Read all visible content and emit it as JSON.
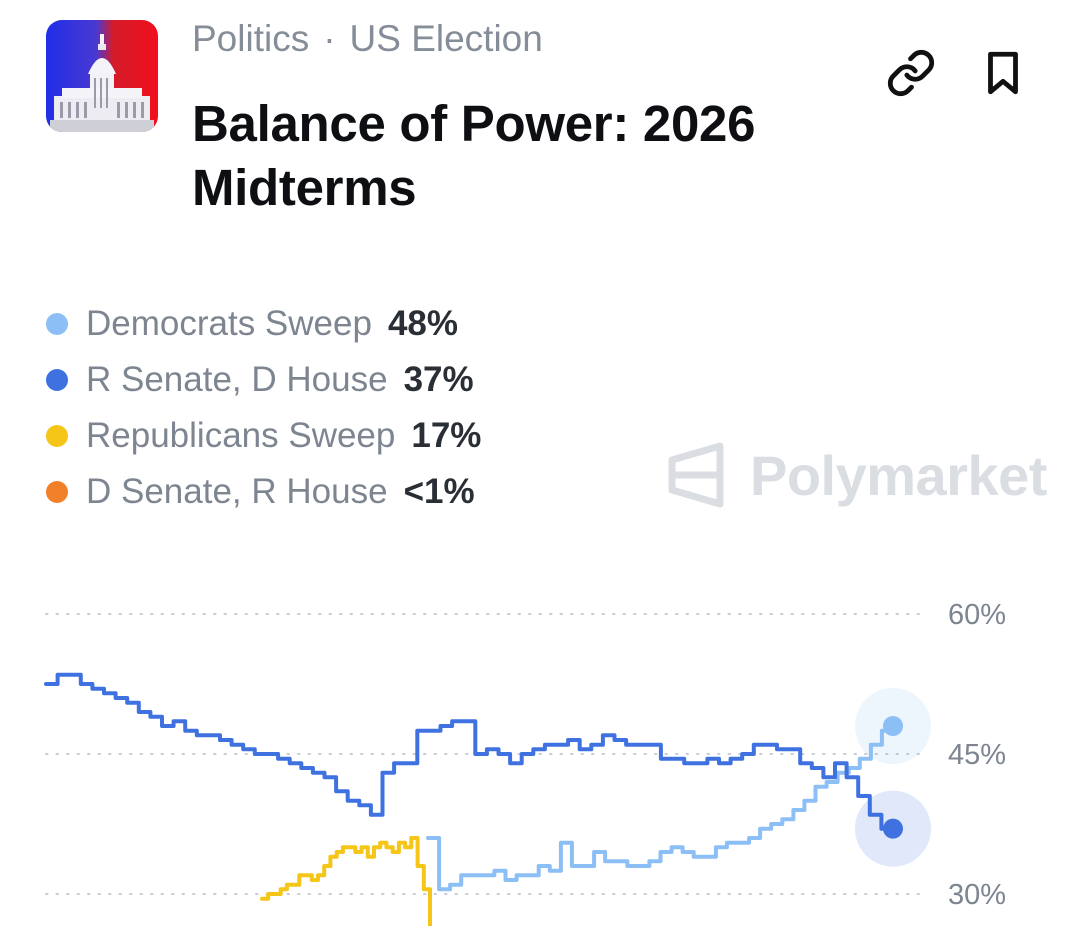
{
  "header": {
    "category": "Politics",
    "separator": "·",
    "subcategory": "US Election",
    "title": "Balance of Power: 2026 Midterms"
  },
  "icons": {
    "market_image": "capitol-building-icon",
    "share": "link-icon",
    "save": "bookmark-icon",
    "watermark": "polymarket-logo-icon"
  },
  "legend": [
    {
      "name": "Democrats Sweep",
      "value": "48%",
      "color": "#8cbff5"
    },
    {
      "name": "R Senate, D House",
      "value": "37%",
      "color": "#3f72e0"
    },
    {
      "name": "Republicans Sweep",
      "value": "17%",
      "color": "#f5c518"
    },
    {
      "name": "D Senate, R House",
      "value": "<1%",
      "color": "#f27f2a"
    }
  ],
  "watermark": {
    "text": "Polymarket"
  },
  "chart_data": {
    "type": "line",
    "yticks": [
      "60%",
      "45%",
      "30%"
    ],
    "ylim": [
      30,
      60
    ],
    "grid": true,
    "series": [
      {
        "name": "R Senate, D House",
        "color": "#3f72e0",
        "values": [
          52.5,
          53.5,
          53.5,
          52.5,
          52,
          51.5,
          51,
          50.5,
          49.5,
          49,
          48,
          48.5,
          47.5,
          47,
          47,
          46.5,
          46,
          45.5,
          45,
          45,
          44.5,
          44,
          43.5,
          43,
          42.5,
          41,
          40,
          39.5,
          38.5,
          43,
          44,
          44,
          47.5,
          47.5,
          48,
          48.5,
          48.5,
          45,
          45.5,
          45,
          44,
          45,
          45.5,
          46,
          46,
          46.5,
          45.5,
          46,
          47,
          46.5,
          46,
          46,
          46,
          44.5,
          44.5,
          44,
          44,
          44.5,
          44,
          44.5,
          45,
          46,
          46,
          45.5,
          45.5,
          44,
          43.5,
          42.5,
          44,
          42.5,
          40.5,
          38.5,
          37,
          37
        ]
      },
      {
        "name": "Democrats Sweep",
        "color": "#8cbff5",
        "values": [
          36,
          30.5,
          31,
          32,
          32,
          32,
          32.5,
          31.5,
          32,
          32,
          33,
          32.5,
          35.5,
          33,
          33,
          34.5,
          33.5,
          33.5,
          33,
          33,
          33.5,
          34.5,
          35,
          34.5,
          34,
          34,
          35,
          35.5,
          35.5,
          36,
          37,
          37.5,
          38,
          39,
          40,
          41.5,
          42,
          43,
          43.5,
          44.5,
          46,
          47.5,
          48
        ]
      },
      {
        "name": "Republicans Sweep",
        "color": "#f5c518",
        "values": [
          29.5,
          30,
          30,
          30.5,
          31,
          31,
          32,
          32,
          31.5,
          32,
          33,
          34,
          34.5,
          35,
          35,
          34.5,
          35,
          34,
          35,
          35.5,
          35,
          34.5,
          35.5,
          35,
          36,
          33,
          30.5,
          28.5
        ]
      }
    ],
    "end_markers": [
      {
        "series": "Democrats Sweep",
        "value": 48
      },
      {
        "series": "R Senate, D House",
        "value": 37
      }
    ]
  }
}
